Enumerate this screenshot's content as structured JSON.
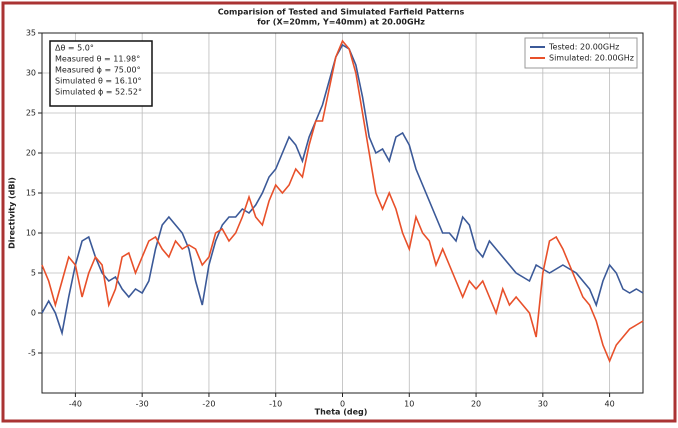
{
  "chart_data": {
    "type": "line",
    "title": "Comparision of Tested and Simulated Farfield Patterns",
    "subtitle": "for (X=20mm, Y=40mm) at 20.00GHz",
    "x_label": "Theta (deg)",
    "y_label": "Directivity (dBi)",
    "annotations": [
      "Δθ = 5.0°",
      "Measured θ = 11.98°",
      "Measured ϕ = 75.00°",
      "Simulated θ = 16.10°",
      "Simulated ϕ = 52.52°"
    ],
    "x": [
      -45,
      -44,
      -43,
      -42,
      -41,
      -40,
      -39,
      -38,
      -37,
      -36,
      -35,
      -34,
      -33,
      -32,
      -31,
      -30,
      -29,
      -28,
      -27,
      -26,
      -25,
      -24,
      -23,
      -22,
      -21,
      -20,
      -19,
      -18,
      -17,
      -16,
      -15,
      -14,
      -13,
      -12,
      -11,
      -10,
      -9,
      -8,
      -7,
      -6,
      -5,
      -4,
      -3,
      -2,
      -1,
      0,
      1,
      2,
      3,
      4,
      5,
      6,
      7,
      8,
      9,
      10,
      11,
      12,
      13,
      14,
      15,
      16,
      17,
      18,
      19,
      20,
      21,
      22,
      23,
      24,
      25,
      26,
      27,
      28,
      29,
      30,
      31,
      32,
      33,
      34,
      35,
      36,
      37,
      38,
      39,
      40,
      41,
      42,
      43,
      44,
      45
    ],
    "series": [
      {
        "name": "Tested: 20.00GHz",
        "color": "#3b5998",
        "values": [
          0,
          1.5,
          0,
          -2.5,
          2,
          6,
          9,
          9.5,
          7,
          5,
          4,
          4.5,
          3,
          2,
          3,
          2.5,
          4,
          8,
          11,
          12,
          11,
          10,
          8,
          4,
          1,
          6,
          9,
          11,
          12,
          12,
          13,
          12.5,
          13.5,
          15,
          17,
          18,
          20,
          22,
          21,
          19,
          22,
          24,
          26,
          29,
          32,
          33.5,
          33,
          31,
          27,
          22,
          20,
          20.5,
          19,
          22,
          22.5,
          21,
          18,
          16,
          14,
          12,
          10,
          10,
          9,
          12,
          11,
          8,
          7,
          9,
          8,
          7,
          6,
          5,
          4.5,
          4,
          6,
          5.5,
          5,
          5.5,
          6,
          5.5,
          5,
          4,
          3,
          1,
          4,
          6,
          5,
          3,
          2.5,
          3,
          2.5
        ]
      },
      {
        "name": "Simulated: 20.00GHz",
        "color": "#e8502a",
        "values": [
          6,
          4,
          1,
          4,
          7,
          6,
          2,
          5,
          7,
          6,
          1,
          3,
          7,
          7.5,
          5,
          7,
          9,
          9.5,
          8,
          7,
          9,
          8,
          8.5,
          8,
          6,
          7,
          10,
          10.5,
          9,
          10,
          12,
          14.5,
          12,
          11,
          14,
          16,
          15,
          16,
          18,
          17,
          21,
          24,
          24,
          28,
          32,
          34,
          33,
          30,
          25,
          20,
          15,
          13,
          15,
          13,
          10,
          8,
          12,
          10,
          9,
          6,
          8,
          6,
          4,
          2,
          4,
          3,
          4,
          2,
          0,
          3,
          1,
          2,
          1,
          0,
          -3,
          5,
          9,
          9.5,
          8,
          6,
          4,
          2,
          1,
          -1,
          -4,
          -6,
          -4,
          -3,
          -2,
          -1.5,
          -1
        ]
      }
    ],
    "xlim": [
      -45,
      45
    ],
    "ylim": [
      -10,
      35
    ],
    "xticks": [
      -40,
      -30,
      -20,
      -10,
      0,
      10,
      20,
      30,
      40
    ],
    "yticks": [
      -5,
      0,
      5,
      10,
      15,
      20,
      25,
      30,
      35
    ],
    "grid": true,
    "legend": "upper right"
  }
}
